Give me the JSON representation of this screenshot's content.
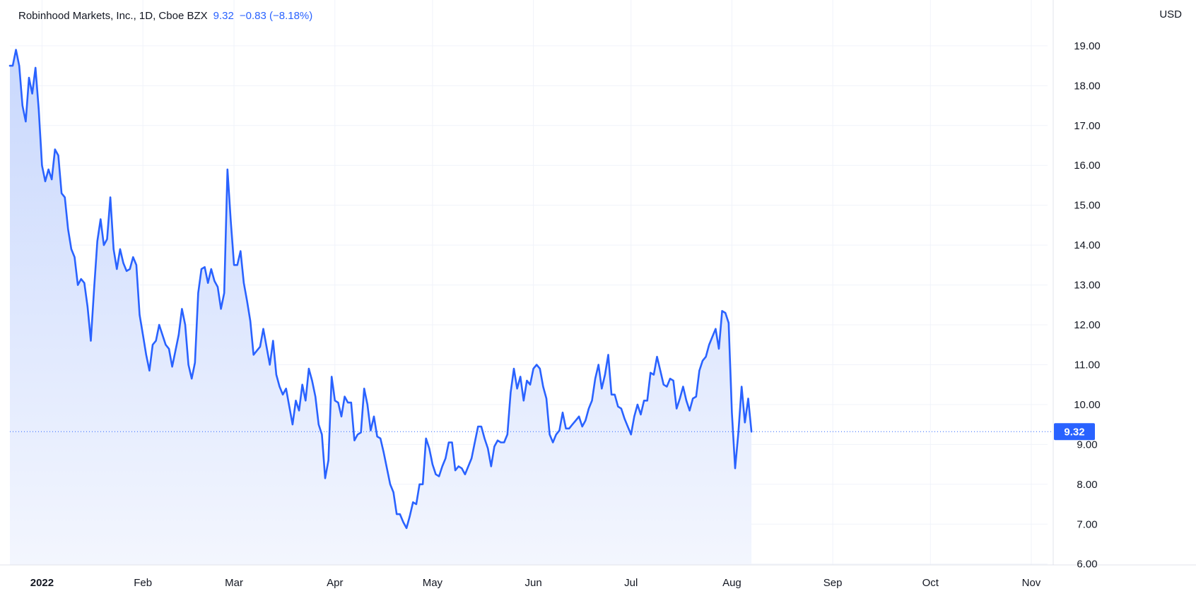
{
  "legend": {
    "symbol": "Robinhood Markets, Inc., 1D, Cboe BZX",
    "last": "9.32",
    "change": "−0.83 (−8.18%)"
  },
  "currency": "USD",
  "last_price_label": "9.32",
  "colors": {
    "line": "#2962ff",
    "fill_top": "#c9d8fd",
    "fill_bottom": "#f3f6fe",
    "grid": "#f0f3fa",
    "text": "#131722"
  },
  "chart_data": {
    "type": "area",
    "ylim": [
      5.8,
      19.6
    ],
    "y_ticks": [
      6,
      7,
      8,
      9,
      10,
      11,
      12,
      13,
      14,
      15,
      16,
      17,
      18,
      19
    ],
    "y_tick_labels": [
      "6.00",
      "7.00",
      "8.00",
      "9.00",
      "10.00",
      "11.00",
      "12.00",
      "13.00",
      "14.00",
      "15.00",
      "16.00",
      "17.00",
      "18.00",
      "19.00"
    ],
    "x_range": [
      0,
      318
    ],
    "x_ticks": [
      {
        "day": 9,
        "label": "2022"
      },
      {
        "day": 40,
        "label": "Feb"
      },
      {
        "day": 68,
        "label": "Mar"
      },
      {
        "day": 99,
        "label": "Apr"
      },
      {
        "day": 129,
        "label": "May"
      },
      {
        "day": 160,
        "label": "Jun"
      },
      {
        "day": 190,
        "label": "Jul"
      },
      {
        "day": 221,
        "label": "Aug"
      },
      {
        "day": 252,
        "label": "Sep"
      },
      {
        "day": 282,
        "label": "Oct"
      },
      {
        "day": 313,
        "label": "Nov"
      }
    ],
    "last_value": 9.32,
    "grid": true,
    "series": [
      {
        "values": [
          [
            0,
            18.5
          ],
          [
            1,
            18.9
          ],
          [
            2,
            18.5
          ],
          [
            3,
            17.5
          ],
          [
            4,
            17.1
          ],
          [
            5,
            18.2
          ],
          [
            6,
            17.8
          ],
          [
            7,
            18.45
          ],
          [
            8,
            17.4
          ],
          [
            9,
            16.0
          ],
          [
            10,
            15.6
          ],
          [
            11,
            15.9
          ],
          [
            12,
            15.65
          ],
          [
            13,
            16.4
          ],
          [
            14,
            16.25
          ],
          [
            15,
            15.3
          ],
          [
            16,
            15.2
          ],
          [
            17,
            14.4
          ],
          [
            18,
            13.9
          ],
          [
            19,
            13.7
          ],
          [
            20,
            13.0
          ],
          [
            21,
            13.15
          ],
          [
            22,
            13.05
          ],
          [
            23,
            12.45
          ],
          [
            24,
            11.6
          ],
          [
            25,
            12.9
          ],
          [
            26,
            14.1
          ],
          [
            27,
            14.65
          ],
          [
            28,
            14.0
          ],
          [
            29,
            14.15
          ],
          [
            30,
            15.2
          ],
          [
            31,
            13.9
          ],
          [
            32,
            13.4
          ],
          [
            33,
            13.9
          ],
          [
            34,
            13.55
          ],
          [
            35,
            13.35
          ],
          [
            36,
            13.4
          ],
          [
            37,
            13.7
          ],
          [
            38,
            13.5
          ],
          [
            39,
            12.25
          ],
          [
            40,
            11.75
          ],
          [
            41,
            11.25
          ],
          [
            42,
            10.85
          ],
          [
            43,
            11.5
          ],
          [
            44,
            11.6
          ],
          [
            45,
            12.0
          ],
          [
            46,
            11.75
          ],
          [
            47,
            11.5
          ],
          [
            48,
            11.4
          ],
          [
            49,
            10.95
          ],
          [
            50,
            11.35
          ],
          [
            51,
            11.75
          ],
          [
            52,
            12.4
          ],
          [
            53,
            12.0
          ],
          [
            54,
            11.0
          ],
          [
            55,
            10.65
          ],
          [
            56,
            11.05
          ],
          [
            57,
            12.8
          ],
          [
            58,
            13.4
          ],
          [
            59,
            13.45
          ],
          [
            60,
            13.05
          ],
          [
            61,
            13.4
          ],
          [
            62,
            13.1
          ],
          [
            63,
            12.95
          ],
          [
            64,
            12.4
          ],
          [
            65,
            12.8
          ],
          [
            66,
            15.9
          ],
          [
            67,
            14.6
          ],
          [
            68,
            13.5
          ],
          [
            69,
            13.5
          ],
          [
            70,
            13.85
          ],
          [
            71,
            13.05
          ],
          [
            72,
            12.6
          ],
          [
            73,
            12.1
          ],
          [
            74,
            11.25
          ],
          [
            75,
            11.35
          ],
          [
            76,
            11.45
          ],
          [
            77,
            11.9
          ],
          [
            78,
            11.45
          ],
          [
            79,
            11.0
          ],
          [
            80,
            11.6
          ],
          [
            81,
            10.75
          ],
          [
            82,
            10.45
          ],
          [
            83,
            10.25
          ],
          [
            84,
            10.4
          ],
          [
            85,
            9.95
          ],
          [
            86,
            9.5
          ],
          [
            87,
            10.1
          ],
          [
            88,
            9.85
          ],
          [
            89,
            10.5
          ],
          [
            90,
            10.1
          ],
          [
            91,
            10.9
          ],
          [
            92,
            10.6
          ],
          [
            93,
            10.2
          ],
          [
            94,
            9.5
          ],
          [
            95,
            9.25
          ],
          [
            96,
            8.15
          ],
          [
            97,
            8.6
          ],
          [
            98,
            10.7
          ],
          [
            99,
            10.1
          ],
          [
            100,
            10.05
          ],
          [
            101,
            9.7
          ],
          [
            102,
            10.2
          ],
          [
            103,
            10.05
          ],
          [
            104,
            10.05
          ],
          [
            105,
            9.1
          ],
          [
            106,
            9.25
          ],
          [
            107,
            9.3
          ],
          [
            108,
            10.4
          ],
          [
            109,
            10.0
          ],
          [
            110,
            9.35
          ],
          [
            111,
            9.7
          ],
          [
            112,
            9.2
          ],
          [
            113,
            9.15
          ],
          [
            114,
            8.8
          ],
          [
            115,
            8.4
          ],
          [
            116,
            8.0
          ],
          [
            117,
            7.8
          ],
          [
            118,
            7.25
          ],
          [
            119,
            7.25
          ],
          [
            120,
            7.05
          ],
          [
            121,
            6.9
          ],
          [
            122,
            7.2
          ],
          [
            123,
            7.55
          ],
          [
            124,
            7.5
          ],
          [
            125,
            8.0
          ],
          [
            126,
            8.0
          ],
          [
            127,
            9.15
          ],
          [
            128,
            8.9
          ],
          [
            129,
            8.5
          ],
          [
            130,
            8.25
          ],
          [
            131,
            8.2
          ],
          [
            132,
            8.45
          ],
          [
            133,
            8.65
          ],
          [
            134,
            9.05
          ],
          [
            135,
            9.05
          ],
          [
            136,
            8.35
          ],
          [
            137,
            8.45
          ],
          [
            138,
            8.4
          ],
          [
            139,
            8.25
          ],
          [
            140,
            8.45
          ],
          [
            141,
            8.65
          ],
          [
            142,
            9.05
          ],
          [
            143,
            9.45
          ],
          [
            144,
            9.45
          ],
          [
            145,
            9.15
          ],
          [
            146,
            8.9
          ],
          [
            147,
            8.45
          ],
          [
            148,
            8.95
          ],
          [
            149,
            9.1
          ],
          [
            150,
            9.05
          ],
          [
            151,
            9.05
          ],
          [
            152,
            9.25
          ],
          [
            153,
            10.3
          ],
          [
            154,
            10.9
          ],
          [
            155,
            10.4
          ],
          [
            156,
            10.7
          ],
          [
            157,
            10.1
          ],
          [
            158,
            10.6
          ],
          [
            159,
            10.5
          ],
          [
            160,
            10.9
          ],
          [
            161,
            11.0
          ],
          [
            162,
            10.9
          ],
          [
            163,
            10.45
          ],
          [
            164,
            10.15
          ],
          [
            165,
            9.25
          ],
          [
            166,
            9.05
          ],
          [
            167,
            9.25
          ],
          [
            168,
            9.35
          ],
          [
            169,
            9.8
          ],
          [
            170,
            9.4
          ],
          [
            171,
            9.4
          ],
          [
            172,
            9.5
          ],
          [
            173,
            9.6
          ],
          [
            174,
            9.7
          ],
          [
            175,
            9.45
          ],
          [
            176,
            9.6
          ],
          [
            177,
            9.9
          ],
          [
            178,
            10.1
          ],
          [
            179,
            10.65
          ],
          [
            180,
            11.0
          ],
          [
            181,
            10.4
          ],
          [
            182,
            10.75
          ],
          [
            183,
            11.25
          ],
          [
            184,
            10.25
          ],
          [
            185,
            10.25
          ],
          [
            186,
            9.95
          ],
          [
            187,
            9.9
          ],
          [
            188,
            9.65
          ],
          [
            189,
            9.45
          ],
          [
            190,
            9.25
          ],
          [
            191,
            9.7
          ],
          [
            192,
            10.0
          ],
          [
            193,
            9.75
          ],
          [
            194,
            10.1
          ],
          [
            195,
            10.1
          ],
          [
            196,
            10.8
          ],
          [
            197,
            10.75
          ],
          [
            198,
            11.2
          ],
          [
            199,
            10.85
          ],
          [
            200,
            10.5
          ],
          [
            201,
            10.45
          ],
          [
            202,
            10.65
          ],
          [
            203,
            10.6
          ],
          [
            204,
            9.9
          ],
          [
            205,
            10.15
          ],
          [
            206,
            10.45
          ],
          [
            207,
            10.1
          ],
          [
            208,
            9.85
          ],
          [
            209,
            10.15
          ],
          [
            210,
            10.2
          ],
          [
            211,
            10.85
          ],
          [
            212,
            11.1
          ],
          [
            213,
            11.2
          ],
          [
            214,
            11.5
          ],
          [
            215,
            11.7
          ],
          [
            216,
            11.9
          ],
          [
            217,
            11.4
          ],
          [
            218,
            12.35
          ],
          [
            219,
            12.3
          ],
          [
            220,
            12.05
          ],
          [
            221,
            9.8
          ],
          [
            222,
            8.4
          ],
          [
            223,
            9.3
          ],
          [
            224,
            10.45
          ],
          [
            225,
            9.55
          ],
          [
            226,
            10.15
          ],
          [
            227,
            9.32
          ]
        ]
      }
    ]
  }
}
